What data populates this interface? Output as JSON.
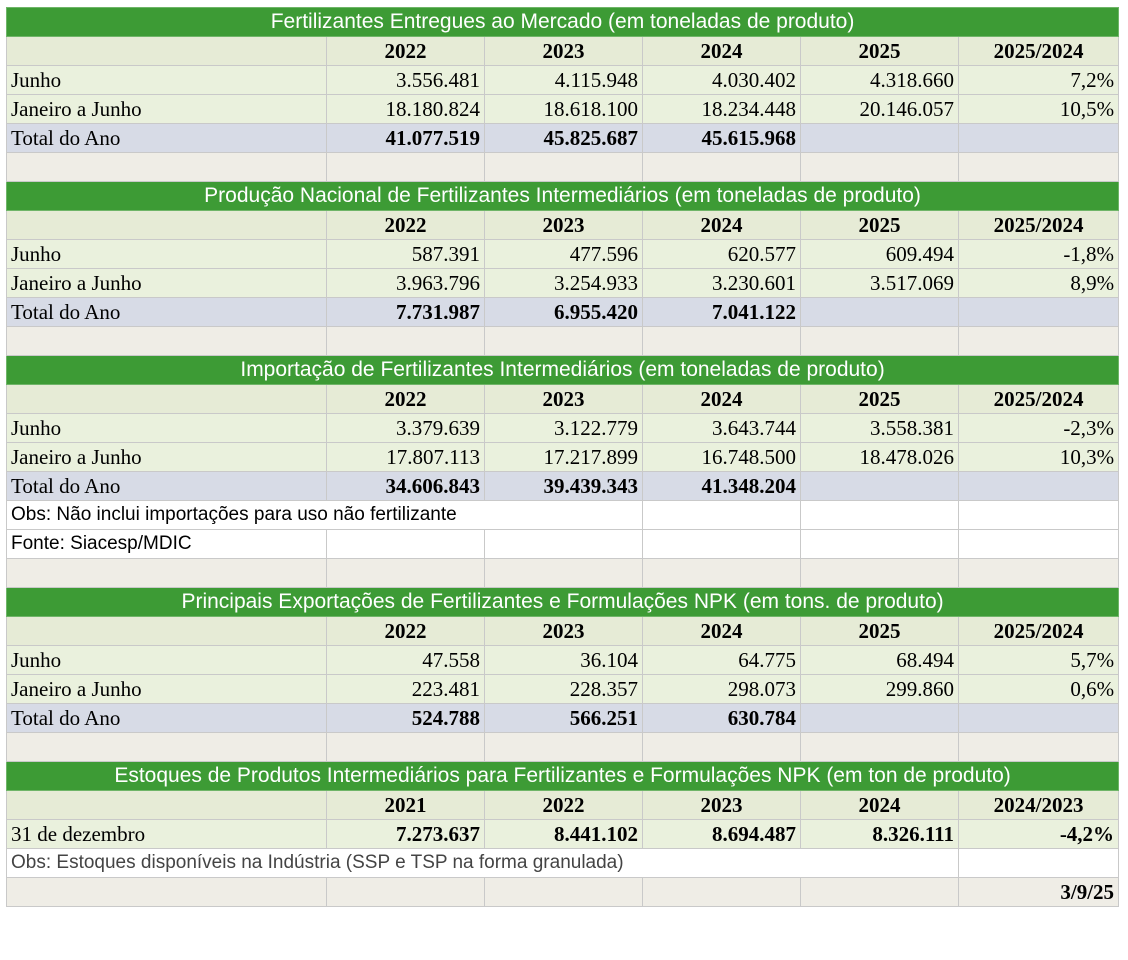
{
  "sections": [
    {
      "title": "Fertilizantes Entregues ao Mercado (em toneladas de produto)",
      "headers": [
        "2022",
        "2023",
        "2024",
        "2025",
        "2025/2024"
      ],
      "rows": [
        {
          "label": "Junho",
          "values": [
            "3.556.481",
            "4.115.948",
            "4.030.402",
            "4.318.660",
            "7,2%"
          ]
        },
        {
          "label": "Janeiro a Junho",
          "values": [
            "18.180.824",
            "18.618.100",
            "18.234.448",
            "20.146.057",
            "10,5%"
          ]
        }
      ],
      "total": {
        "label": "Total do Ano",
        "values": [
          "41.077.519",
          "45.825.687",
          "45.615.968",
          "",
          ""
        ]
      }
    },
    {
      "title": "Produção Nacional de Fertilizantes Intermediários (em toneladas de produto)",
      "headers": [
        "2022",
        "2023",
        "2024",
        "2025",
        "2025/2024"
      ],
      "rows": [
        {
          "label": "Junho",
          "values": [
            "587.391",
            "477.596",
            "620.577",
            "609.494",
            "-1,8%"
          ]
        },
        {
          "label": "Janeiro a Junho",
          "values": [
            "3.963.796",
            "3.254.933",
            "3.230.601",
            "3.517.069",
            "8,9%"
          ]
        }
      ],
      "total": {
        "label": "Total do Ano",
        "values": [
          "7.731.987",
          "6.955.420",
          "7.041.122",
          "",
          ""
        ]
      }
    },
    {
      "title": "Importação de Fertilizantes Intermediários (em toneladas de produto)",
      "headers": [
        "2022",
        "2023",
        "2024",
        "2025",
        "2025/2024"
      ],
      "rows": [
        {
          "label": "Junho",
          "values": [
            "3.379.639",
            "3.122.779",
            "3.643.744",
            "3.558.381",
            "-2,3%"
          ]
        },
        {
          "label": "Janeiro a Junho",
          "values": [
            "17.807.113",
            "17.217.899",
            "16.748.500",
            "18.478.026",
            "10,3%"
          ]
        }
      ],
      "total": {
        "label": "Total do Ano",
        "values": [
          "34.606.843",
          "39.439.343",
          "41.348.204",
          "",
          ""
        ]
      },
      "notes": [
        "Obs: Não inclui importações para uso não fertilizante",
        "Fonte: Siacesp/MDIC"
      ]
    },
    {
      "title": "Principais Exportações de Fertilizantes e Formulações NPK (em tons. de produto)",
      "headers": [
        "2022",
        "2023",
        "2024",
        "2025",
        "2025/2024"
      ],
      "rows": [
        {
          "label": "Junho",
          "values": [
            "47.558",
            "36.104",
            "64.775",
            "68.494",
            "5,7%"
          ]
        },
        {
          "label": "Janeiro a Junho",
          "values": [
            "223.481",
            "228.357",
            "298.073",
            "299.860",
            "0,6%"
          ]
        }
      ],
      "total": {
        "label": "Total do Ano",
        "values": [
          "524.788",
          "566.251",
          "630.784",
          "",
          ""
        ]
      }
    },
    {
      "title": "Estoques de Produtos Intermediários para Fertilizantes e Formulações NPK (em ton de produto)",
      "headers": [
        "2021",
        "2022",
        "2023",
        "2024",
        "2024/2023"
      ],
      "stock_row": {
        "label": "31 de dezembro",
        "values": [
          "7.273.637",
          "8.441.102",
          "8.694.487",
          "8.326.111",
          "-4,2%"
        ]
      },
      "note": "Obs: Estoques disponíveis na Indústria (SSP e TSP na forma granulada)"
    }
  ],
  "footer_date": "3/9/25"
}
